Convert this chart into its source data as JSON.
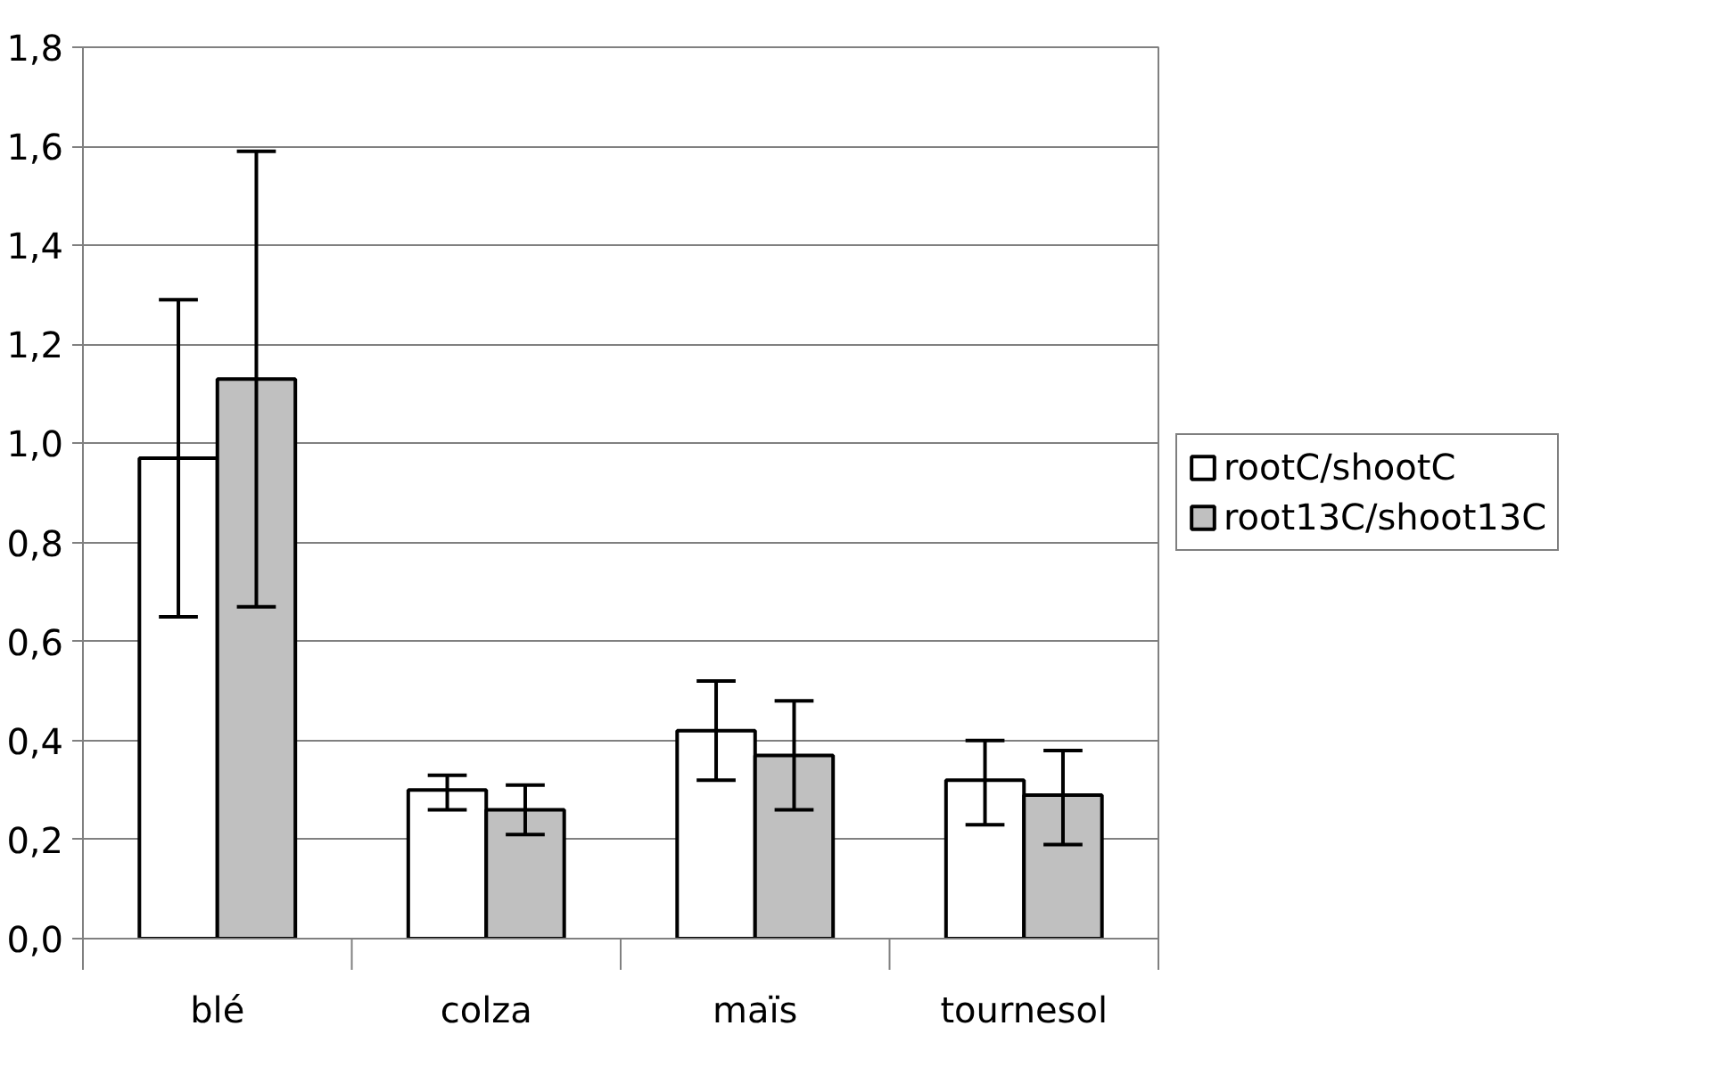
{
  "chart_data": {
    "type": "bar",
    "categories": [
      "blé",
      "colza",
      "maïs",
      "tournesol"
    ],
    "series": [
      {
        "name": "rootC/shootC",
        "color": "#ffffff",
        "values": [
          0.97,
          0.3,
          0.42,
          0.32
        ],
        "errors": [
          [
            0.65,
            1.29
          ],
          [
            0.26,
            0.33
          ],
          [
            0.32,
            0.52
          ],
          [
            0.23,
            0.4
          ]
        ]
      },
      {
        "name": "root13C/shoot13C",
        "color": "#c0c0c0",
        "values": [
          1.13,
          0.26,
          0.37,
          0.29
        ],
        "errors": [
          [
            0.67,
            1.59
          ],
          [
            0.21,
            0.31
          ],
          [
            0.26,
            0.48
          ],
          [
            0.19,
            0.38
          ]
        ]
      }
    ],
    "ylim": [
      0,
      1.8
    ],
    "yticks": [
      {
        "value": 0,
        "label": "0,0"
      },
      {
        "value": 0.2,
        "label": "0,2"
      },
      {
        "value": 0.4,
        "label": "0,4"
      },
      {
        "value": 0.6,
        "label": "0,6"
      },
      {
        "value": 0.8,
        "label": "0,8"
      },
      {
        "value": 1.0,
        "label": "1,0"
      },
      {
        "value": 1.2,
        "label": "1,2"
      },
      {
        "value": 1.4,
        "label": "1,4"
      },
      {
        "value": 1.6,
        "label": "1,6"
      },
      {
        "value": 1.8,
        "label": "1,8"
      }
    ],
    "grid": "y",
    "legend": "right"
  }
}
